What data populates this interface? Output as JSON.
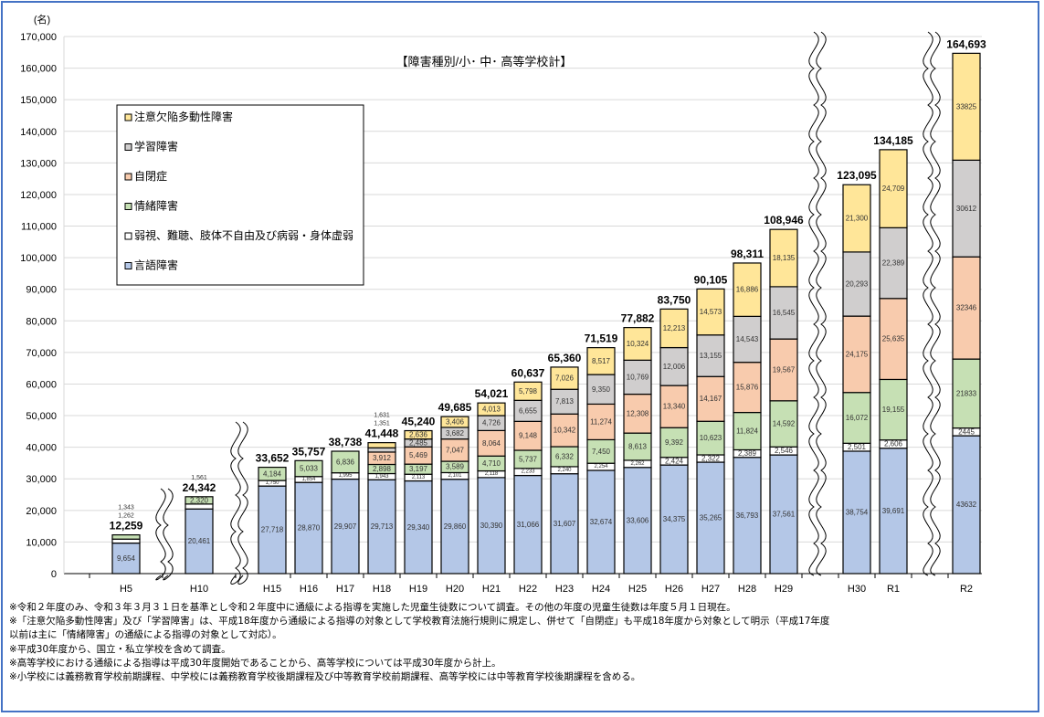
{
  "chart_data": {
    "type": "bar",
    "stacked": true,
    "title": "【障害種別/小･ 中･ 高等学校計】",
    "ylabel": "(名)",
    "ylim": [
      0,
      170000
    ],
    "yticks": [
      0,
      10000,
      20000,
      30000,
      40000,
      50000,
      60000,
      70000,
      80000,
      90000,
      100000,
      110000,
      120000,
      130000,
      140000,
      150000,
      160000,
      170000
    ],
    "ytick_labels": [
      "0",
      "10,000",
      "20,000",
      "30,000",
      "40,000",
      "50,000",
      "60,000",
      "70,000",
      "80,000",
      "90,000",
      "100,000",
      "110,000",
      "120,000",
      "130,000",
      "140,000",
      "150,000",
      "160,000",
      "170,000"
    ],
    "grid": true,
    "legend_position": "top-left",
    "categories": [
      "H5",
      "H10",
      "H15",
      "H16",
      "H17",
      "H18",
      "H19",
      "H20",
      "H21",
      "H22",
      "H23",
      "H24",
      "H25",
      "H26",
      "H27",
      "H28",
      "H29",
      "H30",
      "R1",
      "R2"
    ],
    "axis_breaks_after": [
      "H5",
      "H10",
      "H29",
      "R1"
    ],
    "series": [
      {
        "name": "言語障害",
        "color": "#b4c7e7",
        "values": [
          9654,
          20461,
          27718,
          28870,
          29907,
          29713,
          29340,
          29860,
          30390,
          31066,
          31607,
          32674,
          33606,
          34375,
          35265,
          36793,
          37561,
          38754,
          39691,
          43632
        ]
      },
      {
        "name": "弱視、難聴、肢体不自由及び病弱・身体虚弱",
        "color": "#ffffff",
        "values": [
          1262,
          1561,
          1750,
          1854,
          1995,
          1943,
          2113,
          2101,
          2118,
          2233,
          2240,
          2254,
          2262,
          2424,
          2322,
          2389,
          2546,
          2501,
          2606,
          2445
        ]
      },
      {
        "name": "情緒障害",
        "color": "#c6e0b4",
        "values": [
          1343,
          2320,
          4184,
          5033,
          6836,
          2898,
          3197,
          3589,
          4710,
          5737,
          6332,
          7450,
          8613,
          9392,
          10623,
          11824,
          14592,
          16072,
          19155,
          21833
        ]
      },
      {
        "name": "自閉症",
        "color": "#f8cbad",
        "values": [
          null,
          null,
          null,
          null,
          null,
          3912,
          5469,
          7047,
          8064,
          9148,
          10342,
          11274,
          12308,
          13340,
          14167,
          15876,
          19567,
          24175,
          25635,
          32346
        ]
      },
      {
        "name": "学習障害",
        "color": "#d0cece",
        "values": [
          null,
          null,
          null,
          null,
          null,
          1351,
          2485,
          3682,
          4726,
          6655,
          7813,
          9350,
          10769,
          12006,
          13155,
          14543,
          16545,
          20293,
          22389,
          30612
        ]
      },
      {
        "name": "注意欠陥多動性障害",
        "color": "#ffe699",
        "values": [
          null,
          null,
          null,
          null,
          null,
          1631,
          2636,
          3406,
          4013,
          5798,
          7026,
          8517,
          10324,
          12213,
          14573,
          16886,
          18135,
          21300,
          24709,
          33825
        ]
      }
    ],
    "segment_labels": [
      [
        "9,654",
        "20,461",
        "27,718",
        "28,870",
        "29,907",
        "29,713",
        "29,340",
        "29,860",
        "30,390",
        "31,066",
        "31,607",
        "32,674",
        "33,606",
        "34,375",
        "35,265",
        "36,793",
        "37,561",
        "38,754",
        "39,691",
        "43632"
      ],
      [
        "1,262",
        "1,561",
        "1,750",
        "1,854",
        "1,995",
        "1,943",
        "2,113",
        "2,101",
        "2,118",
        "2,233",
        "2,240",
        "2,254",
        "2,262",
        "2,424",
        "2,322",
        "2,389",
        "2,546",
        "2,501",
        "2,606",
        "2445"
      ],
      [
        "1,343",
        "2,320",
        "4,184",
        "5,033",
        "6,836",
        "2,898",
        "3,197",
        "3,589",
        "4,710",
        "5,737",
        "6,332",
        "7,450",
        "8,613",
        "9,392",
        "10,623",
        "11,824",
        "14,592",
        "16,072",
        "19,155",
        "21833"
      ],
      [
        null,
        null,
        null,
        null,
        null,
        "3,912",
        "5,469",
        "7,047",
        "8,064",
        "9,148",
        "10,342",
        "11,274",
        "12,308",
        "13,340",
        "14,167",
        "15,876",
        "19,567",
        "24,175",
        "25,635",
        "32346"
      ],
      [
        null,
        null,
        null,
        null,
        null,
        "1,351",
        "2,485",
        "3,682",
        "4,726",
        "6,655",
        "7,813",
        "9,350",
        "10,769",
        "12,006",
        "13,155",
        "14,543",
        "16,545",
        "20,293",
        "22,389",
        "30612"
      ],
      [
        null,
        null,
        null,
        null,
        null,
        "1,631",
        "2,636",
        "3,406",
        "4,013",
        "5,798",
        "7,026",
        "8,517",
        "10,324",
        "12,213",
        "14,573",
        "16,886",
        "18,135",
        "21,300",
        "24,709",
        "33825"
      ]
    ],
    "totals": [
      12259,
      24342,
      33652,
      35757,
      38738,
      41448,
      45240,
      49685,
      54021,
      60637,
      65360,
      71519,
      77882,
      83750,
      90105,
      98311,
      108946,
      123095,
      134185,
      164693
    ],
    "total_labels": [
      "12,259",
      "24,342",
      "33,652",
      "35,757",
      "38,738",
      "41,448",
      "45,240",
      "49,685",
      "54,021",
      "60,637",
      "65,360",
      "71,519",
      "77,882",
      "83,750",
      "90,105",
      "98,311",
      "108,946",
      "123,095",
      "134,185",
      "164,693"
    ],
    "legend_order": [
      "注意欠陥多動性障害",
      "学習障害",
      "自閉症",
      "情緒障害",
      "弱視、難聴、肢体不自由及び病弱・身体虚弱",
      "言語障害"
    ]
  },
  "notes": [
    "※令和２年度のみ、令和３年３月３１日を基準とし令和２年度中に通級による指導を実施した児童生徒数について調査。その他の年度の児童生徒数は年度５月１日現在。",
    "※「注意欠陥多動性障害」及び「学習障害」は、平成18年度から通級による指導の対象として学校教育法施行規則に規定し、併せて「自閉症」も平成18年度から対象として明示（平成17年度",
    "以前は主に「情緒障害」の通級による指導の対象として対応）。",
    "※平成30年度から、国立・私立学校を含めて調査。",
    "※高等学校における通級による指導は平成30年度開始であることから、高等学校については平成30年度から計上。",
    "※小学校には義務教育学校前期課程、中学校には義務教育学校後期課程及び中等教育学校前期課程、高等学校には中等教育学校後期課程を含める。"
  ]
}
